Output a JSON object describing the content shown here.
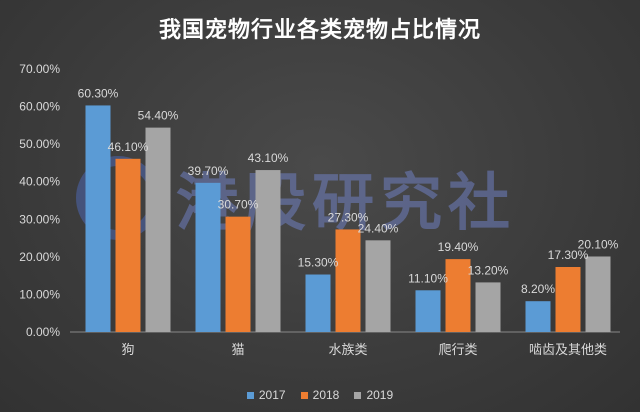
{
  "chart_data": {
    "type": "bar",
    "title": "我国宠物行业各类宠物占比情况",
    "categories": [
      "狗",
      "猫",
      "水族类",
      "爬行类",
      "啮齿及其他类"
    ],
    "series": [
      {
        "name": "2017",
        "color": "#5b9bd5",
        "values": [
          60.3,
          39.7,
          15.3,
          11.1,
          8.2
        ],
        "labels": [
          "60.30%",
          "39.70%",
          "15.30%",
          "11.10%",
          "8.20%"
        ]
      },
      {
        "name": "2018",
        "color": "#ed7d31",
        "values": [
          46.1,
          30.7,
          27.3,
          19.4,
          17.3
        ],
        "labels": [
          "46.10%",
          "30.70%",
          "27.30%",
          "19.40%",
          "17.30%"
        ]
      },
      {
        "name": "2019",
        "color": "#a5a5a5",
        "values": [
          54.4,
          43.1,
          24.4,
          13.2,
          20.1
        ],
        "labels": [
          "54.40%",
          "43.10%",
          "24.40%",
          "13.20%",
          "20.10%"
        ]
      }
    ],
    "yticks": [
      "0.00%",
      "10.00%",
      "20.00%",
      "30.00%",
      "40.00%",
      "50.00%",
      "60.00%",
      "70.00%"
    ],
    "ylim": [
      0,
      70
    ],
    "legend_position": "bottom",
    "grid": false
  },
  "watermark": {
    "text": "港股研究社"
  }
}
